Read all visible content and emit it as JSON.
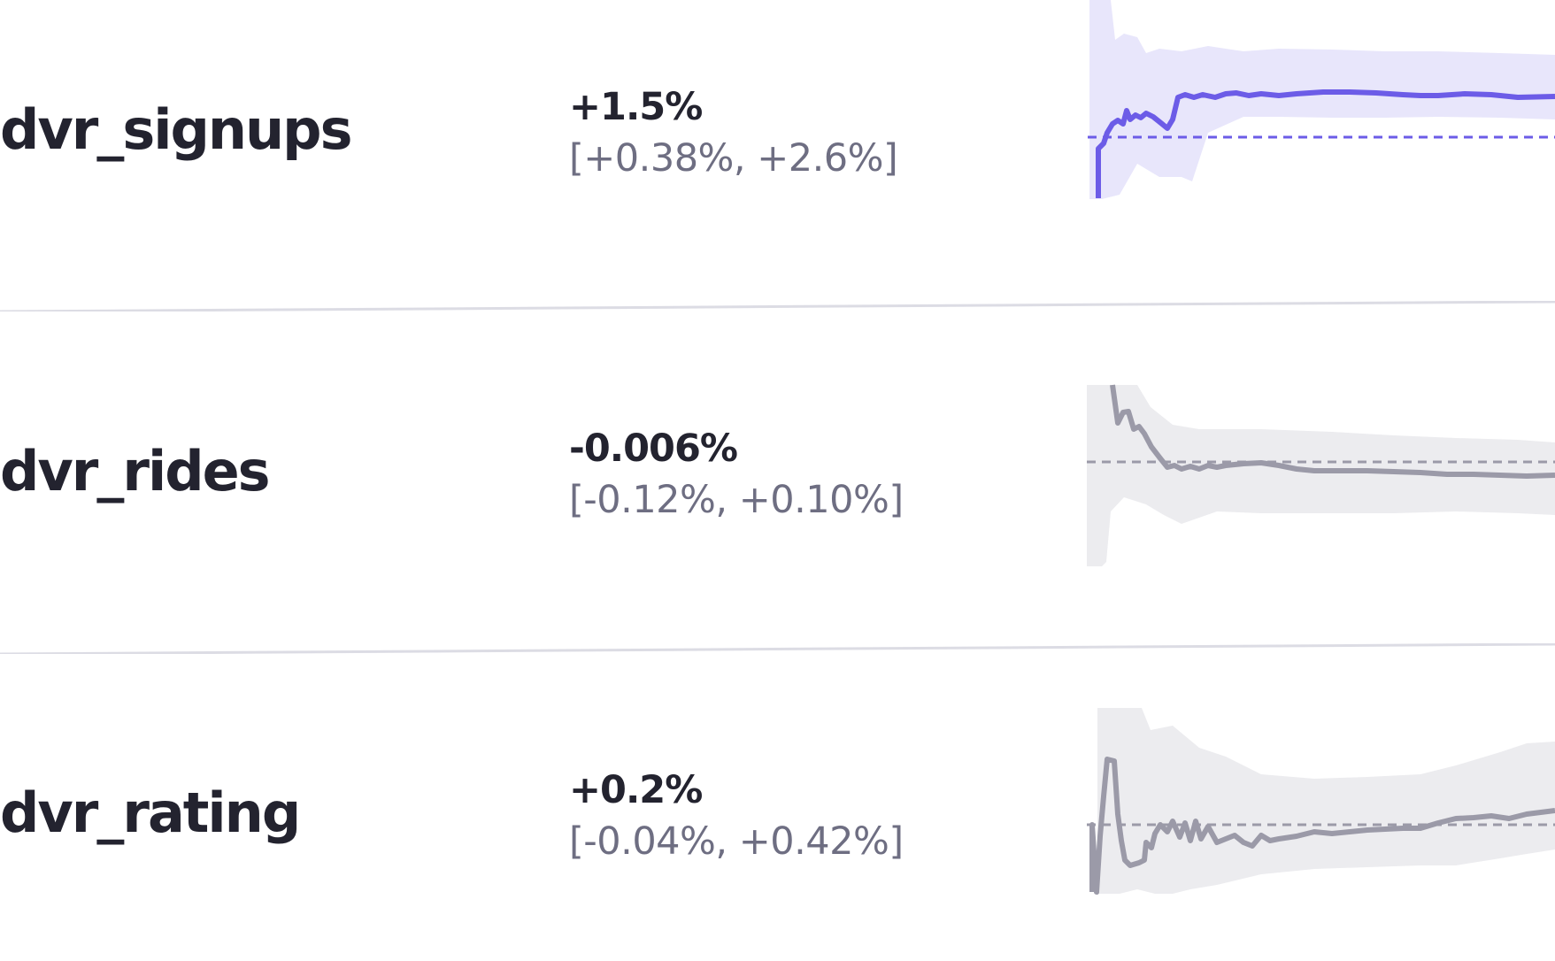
{
  "metrics": [
    {
      "name": "dvr_signups",
      "lift": "+1.5%",
      "interval": "[+0.38%, +2.6%]",
      "status": "positive",
      "color": "#6c5ce7",
      "band_color": "#e8e6fb"
    },
    {
      "name": "dvr_rides",
      "lift": "-0.006%",
      "interval": "[-0.12%, +0.10%]",
      "status": "neutral",
      "color": "#9b9aa8",
      "band_color": "#ececef"
    },
    {
      "name": "dvr_rating",
      "lift": "+0.2%",
      "interval": "[-0.04%, +0.42%]",
      "status": "neutral",
      "color": "#9b9aa8",
      "band_color": "#ececef"
    }
  ],
  "colors": {
    "text_primary": "#23232f",
    "text_secondary": "#6e6e82",
    "divider": "#dcdce4",
    "positive": "#6c5ce7",
    "neutral": "#9b9aa8"
  }
}
